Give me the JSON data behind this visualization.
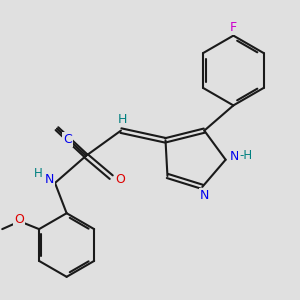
{
  "bg_color": "#e0e0e0",
  "bond_color": "#1a1a1a",
  "bond_width": 1.5,
  "atom_colors": {
    "N": "#0000ee",
    "O": "#dd0000",
    "F": "#cc00cc",
    "H": "#008080",
    "C_cyano": "#0000ee"
  },
  "scale": 1.0
}
